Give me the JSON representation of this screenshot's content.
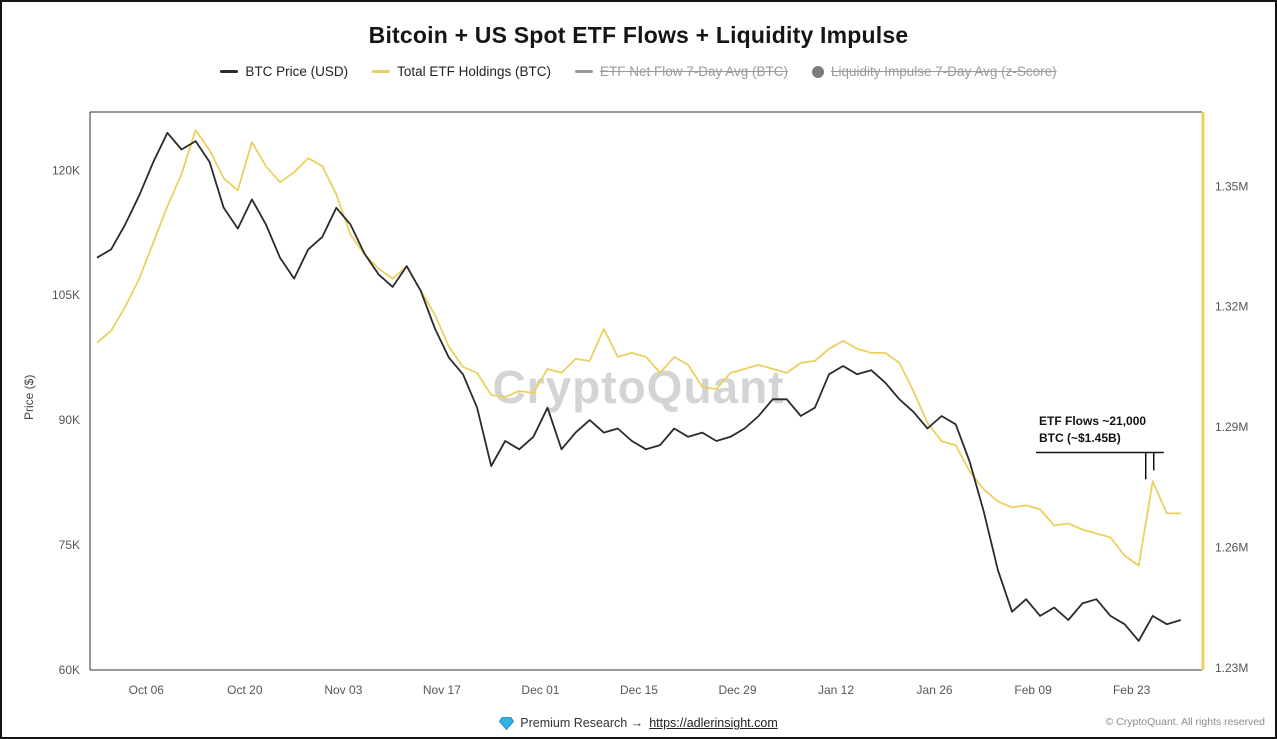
{
  "title": "Bitcoin + US Spot ETF Flows + Liquidity Impulse",
  "watermark": "CryptoQuant",
  "legend": [
    {
      "label": "BTC Price (USD)",
      "color": "#2b2b2b",
      "marker": "line",
      "active": true
    },
    {
      "label": "Total ETF Holdings (BTC)",
      "color": "#ecd05e",
      "marker": "line",
      "active": true
    },
    {
      "label": "ETF Net Flow 7-Day Avg (BTC)",
      "color": "#9a9a9a",
      "marker": "line",
      "active": false
    },
    {
      "label": "Liquidity Impulse 7-Day Avg (z-Score)",
      "color": "#7d7d7d",
      "marker": "circle",
      "active": false
    }
  ],
  "footer": {
    "diamond_icon": "diamond",
    "premium_prefix": "Premium Research →",
    "premium_link": "https://adlerinsight.com",
    "copyright": "© CryptoQuant. All rights reserved"
  },
  "colors": {
    "btc_line": "#2b2b2b",
    "etf_line": "#ecd05e",
    "disabled_legend": "#9a9a9a",
    "frame": "#333333",
    "diamond_blue": "#2fb1e8"
  },
  "chart_data": {
    "type": "line",
    "title": "Bitcoin + US Spot ETF Flows + Liquidity Impulse",
    "x_unit": "days since Oct 01",
    "x_domain": [
      -3,
      155
    ],
    "x_tick_days": [
      5,
      19,
      33,
      47,
      61,
      75,
      89,
      103,
      117,
      131,
      145
    ],
    "x_tick_labels": [
      "Oct 06",
      "Oct 20",
      "Nov 03",
      "Nov 17",
      "Dec 01",
      "Dec 15",
      "Dec 29",
      "Jan 12",
      "Jan 26",
      "Feb 09",
      "Feb 23"
    ],
    "y_left": {
      "label": "Price ($)",
      "ticks": [
        "120K",
        "105K",
        "90K",
        "75K",
        "60K"
      ],
      "tick_values": [
        120000,
        105000,
        90000,
        75000,
        60000
      ],
      "domain": [
        60000,
        127000
      ]
    },
    "y_right": {
      "label": "Total ETF Holdings (BTC)",
      "ticks": [
        "1.35M",
        "1.32M",
        "1.29M",
        "1.26M",
        "1.23M"
      ],
      "tick_values": [
        1350000,
        1320000,
        1290000,
        1260000,
        1230000
      ],
      "domain": [
        1229500,
        1368500
      ]
    },
    "grid": false,
    "legend_position": "top",
    "days": [
      -2,
      0,
      2,
      4,
      6,
      8,
      10,
      12,
      14,
      16,
      18,
      20,
      22,
      24,
      26,
      28,
      30,
      32,
      34,
      36,
      38,
      40,
      42,
      44,
      46,
      48,
      50,
      52,
      54,
      56,
      58,
      60,
      62,
      64,
      66,
      68,
      70,
      72,
      74,
      76,
      78,
      80,
      82,
      84,
      86,
      88,
      90,
      92,
      94,
      96,
      98,
      100,
      102,
      104,
      106,
      108,
      110,
      112,
      114,
      116,
      118,
      120,
      122,
      124,
      126,
      128,
      130,
      132,
      134,
      136,
      138,
      140,
      142,
      144,
      146,
      148,
      150,
      152
    ],
    "series": [
      {
        "name": "BTC Price (USD)",
        "axis": "left",
        "color": "#2b2b2b",
        "values": [
          109500,
          110500,
          113500,
          117000,
          121000,
          124500,
          122500,
          123500,
          121000,
          115500,
          113000,
          116500,
          113500,
          109500,
          107000,
          110500,
          112000,
          115500,
          113500,
          110000,
          107500,
          106000,
          108500,
          105500,
          101000,
          97500,
          95500,
          91500,
          84500,
          87500,
          86500,
          88000,
          91500,
          86500,
          88500,
          90000,
          88500,
          89000,
          87500,
          86500,
          87000,
          89000,
          88000,
          88500,
          87500,
          88000,
          89000,
          90500,
          92500,
          92500,
          90500,
          91500,
          95500,
          96500,
          95500,
          96000,
          94500,
          92500,
          91000,
          89000,
          90500,
          89500,
          85000,
          79000,
          72000,
          67000,
          68500,
          66500,
          67500,
          66000,
          68000,
          68500,
          66500,
          65500,
          63500,
          66500,
          65500,
          66000
        ]
      },
      {
        "name": "Total ETF Holdings (BTC)",
        "axis": "right",
        "color": "#ecd05e",
        "values": [
          1311000,
          1314000,
          1320000,
          1327000,
          1336000,
          1345000,
          1353000,
          1364000,
          1359000,
          1352000,
          1349000,
          1361000,
          1355000,
          1351000,
          1353500,
          1357000,
          1355000,
          1348000,
          1338000,
          1333000,
          1329500,
          1327000,
          1330000,
          1324000,
          1318000,
          1310000,
          1305000,
          1303500,
          1298000,
          1297500,
          1299000,
          1298500,
          1304500,
          1303500,
          1307000,
          1306500,
          1314500,
          1307500,
          1308500,
          1307500,
          1303500,
          1307500,
          1305500,
          1300000,
          1299500,
          1303500,
          1304500,
          1305500,
          1304500,
          1303500,
          1306000,
          1306500,
          1309500,
          1311500,
          1309500,
          1308500,
          1308500,
          1306000,
          1299000,
          1291000,
          1286500,
          1285500,
          1279000,
          1274500,
          1271500,
          1270000,
          1270500,
          1269500,
          1265500,
          1266000,
          1264500,
          1263500,
          1262500,
          1258000,
          1255500,
          1276500,
          1268500,
          1268500
        ]
      }
    ],
    "annotation": {
      "text_line1": "ETF Flows ~21,000",
      "text_line2": "BTC (~$1.45B)",
      "anchor_day": 148,
      "anchor_value": 1276500
    }
  }
}
